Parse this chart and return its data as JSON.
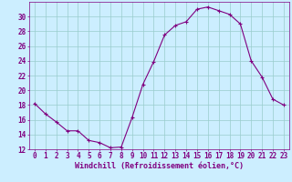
{
  "x": [
    0,
    1,
    2,
    3,
    4,
    5,
    6,
    7,
    8,
    9,
    10,
    11,
    12,
    13,
    14,
    15,
    16,
    17,
    18,
    19,
    20,
    21,
    22,
    23
  ],
  "y": [
    18.2,
    16.8,
    15.7,
    14.5,
    14.5,
    13.2,
    12.9,
    12.2,
    12.3,
    16.3,
    20.8,
    23.9,
    27.5,
    28.8,
    29.3,
    31.0,
    31.3,
    30.8,
    30.3,
    29.0,
    24.0,
    21.8,
    18.8,
    18.0
  ],
  "line_color": "#800080",
  "marker": "+",
  "marker_size": 3,
  "bg_color": "#cceeff",
  "grid_color": "#99cccc",
  "xlabel": "Windchill (Refroidissement éolien,°C)",
  "ylim": [
    12,
    32
  ],
  "xlim": [
    -0.5,
    23.5
  ],
  "yticks": [
    12,
    14,
    16,
    18,
    20,
    22,
    24,
    26,
    28,
    30
  ],
  "xticks": [
    0,
    1,
    2,
    3,
    4,
    5,
    6,
    7,
    8,
    9,
    10,
    11,
    12,
    13,
    14,
    15,
    16,
    17,
    18,
    19,
    20,
    21,
    22,
    23
  ],
  "tick_color": "#800080",
  "label_color": "#800080",
  "label_fontsize": 6,
  "tick_fontsize": 5.5
}
